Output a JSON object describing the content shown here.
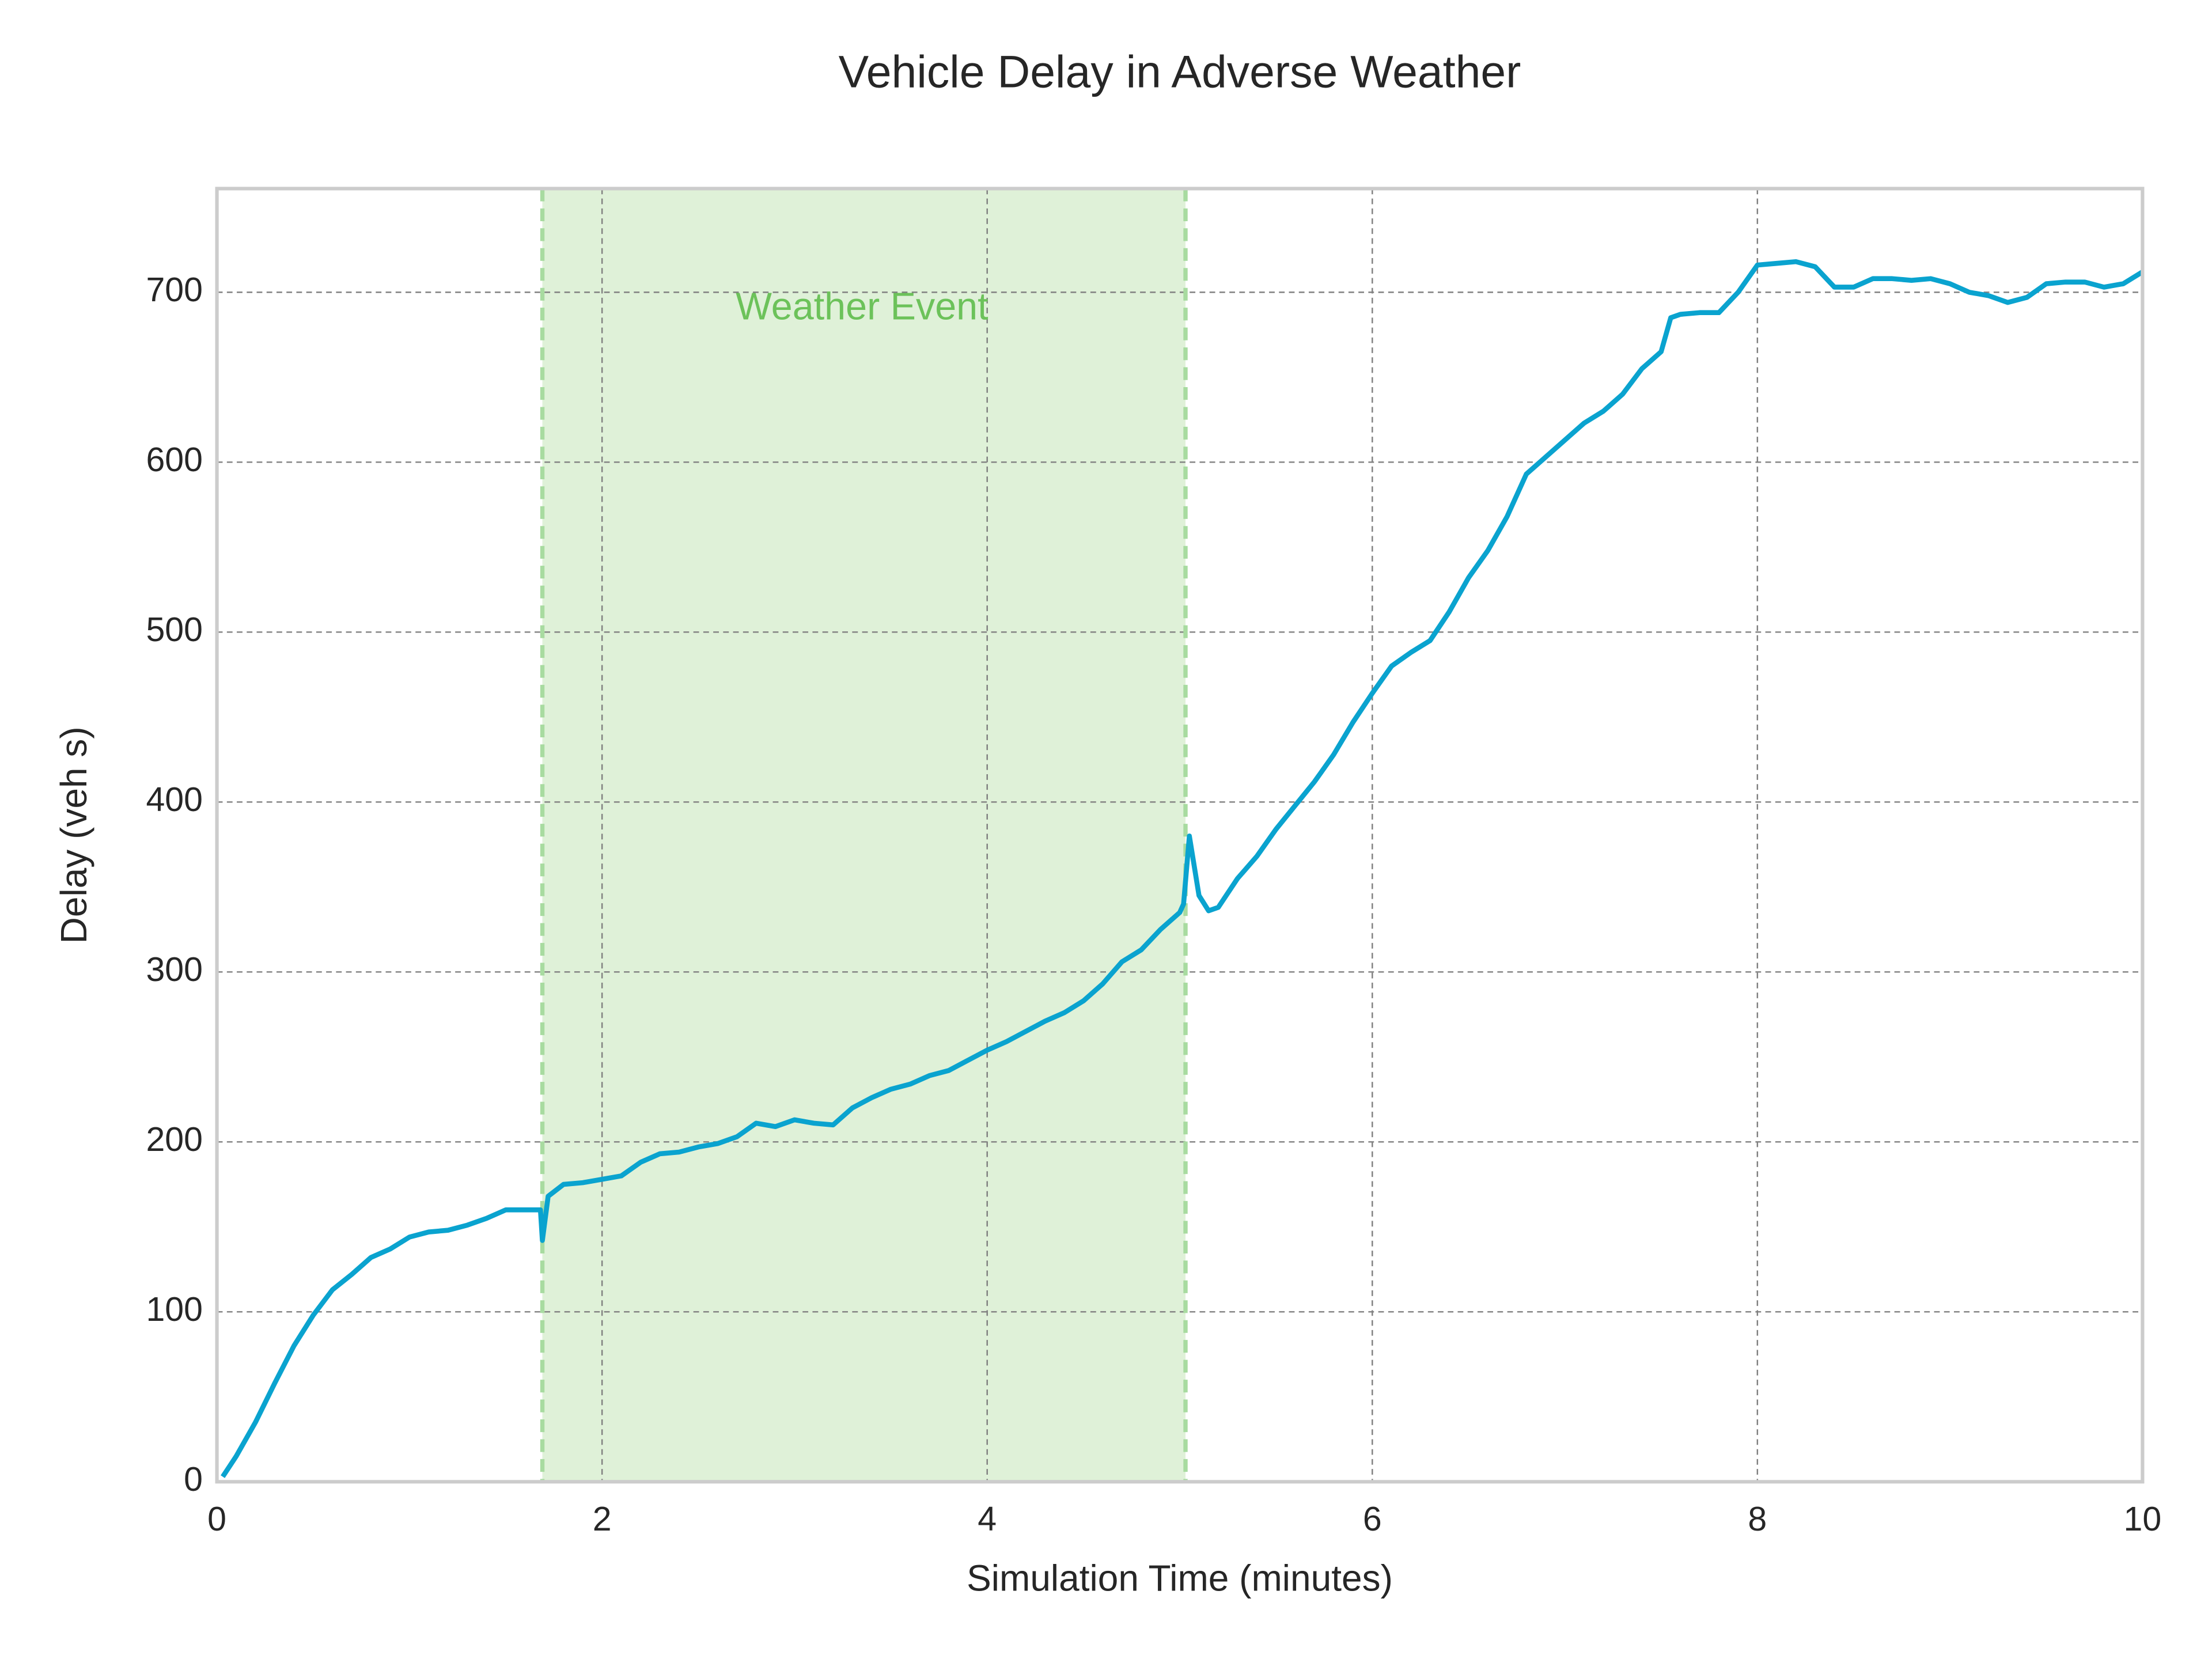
{
  "chart_data": {
    "type": "line",
    "title": "Vehicle Delay in Adverse Weather",
    "x_label": "Simulation Time (minutes)",
    "y_label": "Delay (veh s)",
    "xlim": [
      0,
      10
    ],
    "ylim": [
      0,
      761
    ],
    "xticks": [
      0,
      2,
      4,
      6,
      8,
      10
    ],
    "yticks": [
      0,
      100,
      200,
      300,
      400,
      500,
      600,
      700
    ],
    "grid": true,
    "highlight": {
      "start": 1.69,
      "end": 5.03,
      "color": "#dff1d8",
      "edge_color": "#a8dba0"
    },
    "annotation": {
      "text": "Weather Event",
      "x": 3.35,
      "y": 690,
      "color": "#6cc25a"
    },
    "x": [
      0.03,
      0.1,
      0.2,
      0.3,
      0.4,
      0.5,
      0.6,
      0.7,
      0.8,
      0.9,
      1.0,
      1.1,
      1.2,
      1.3,
      1.4,
      1.5,
      1.6,
      1.68,
      1.69,
      1.72,
      1.8,
      1.9,
      2.0,
      2.1,
      2.2,
      2.3,
      2.4,
      2.5,
      2.6,
      2.7,
      2.8,
      2.9,
      3.0,
      3.1,
      3.2,
      3.3,
      3.4,
      3.5,
      3.6,
      3.7,
      3.8,
      3.9,
      4.0,
      4.1,
      4.2,
      4.3,
      4.4,
      4.5,
      4.6,
      4.7,
      4.8,
      4.9,
      5.0,
      5.02,
      5.05,
      5.1,
      5.15,
      5.2,
      5.3,
      5.4,
      5.5,
      5.6,
      5.7,
      5.8,
      5.9,
      6.0,
      6.1,
      6.2,
      6.3,
      6.4,
      6.5,
      6.6,
      6.7,
      6.8,
      6.9,
      7.0,
      7.1,
      7.2,
      7.3,
      7.4,
      7.5,
      7.55,
      7.6,
      7.7,
      7.8,
      7.9,
      8.0,
      8.1,
      8.2,
      8.3,
      8.4,
      8.5,
      8.6,
      8.7,
      8.8,
      8.9,
      9.0,
      9.1,
      9.2,
      9.3,
      9.4,
      9.5,
      9.6,
      9.7,
      9.8,
      9.9,
      10.0
    ],
    "series": [
      {
        "name": "Delay",
        "color": "#0aa3cf",
        "values": [
          3,
          15,
          35,
          58,
          80,
          98,
          113,
          122,
          132,
          137,
          144,
          147,
          148,
          151,
          155,
          160,
          160,
          160,
          142,
          168,
          175,
          176,
          178,
          180,
          188,
          193,
          194,
          197,
          199,
          203,
          211,
          209,
          213,
          211,
          210,
          220,
          226,
          231,
          234,
          239,
          242,
          248,
          254,
          259,
          265,
          271,
          276,
          283,
          293,
          306,
          313,
          325,
          335,
          340,
          380,
          345,
          336,
          338,
          355,
          368,
          384,
          398,
          412,
          428,
          447,
          464,
          480,
          488,
          495,
          512,
          532,
          548,
          568,
          593,
          603,
          613,
          623,
          630,
          640,
          655,
          665,
          685,
          687,
          688,
          688,
          700,
          716,
          717,
          718,
          715,
          703,
          703,
          708,
          708,
          707,
          708,
          705,
          700,
          698,
          694,
          697,
          705,
          706,
          706,
          703,
          705,
          712
        ]
      }
    ]
  }
}
